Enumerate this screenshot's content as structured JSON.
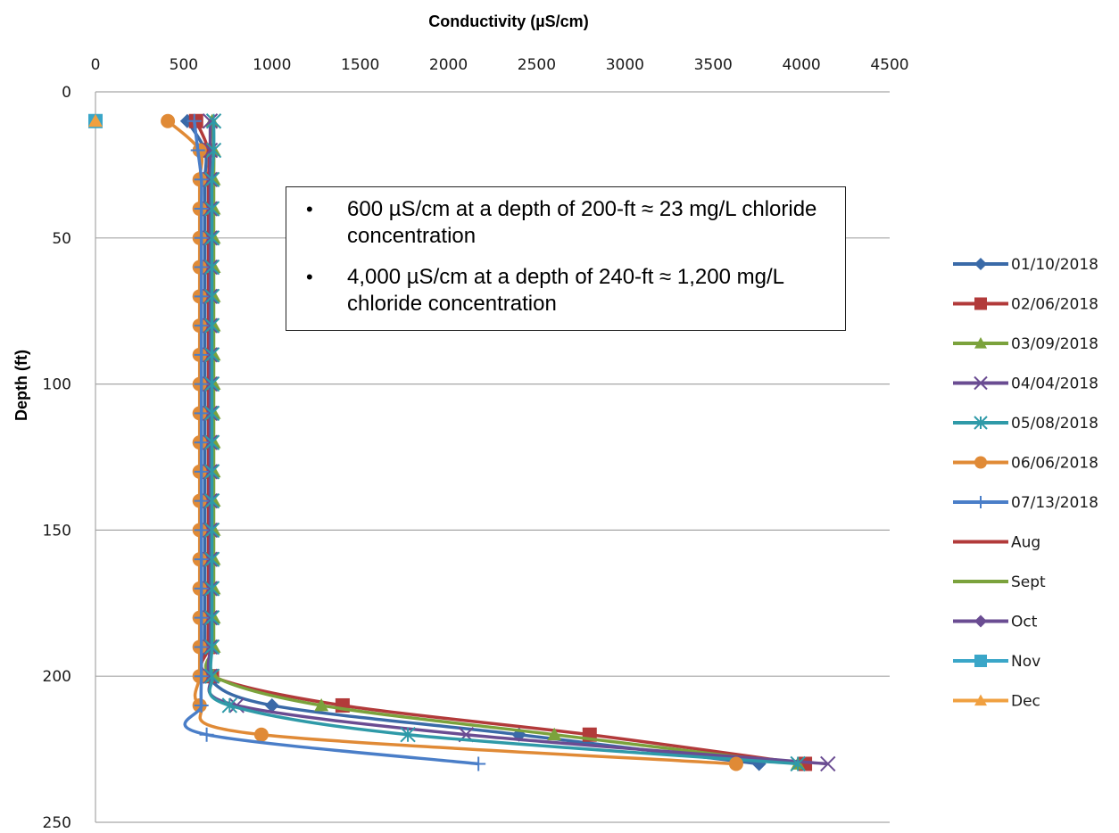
{
  "chart_data": {
    "type": "line",
    "title": "",
    "xlabel": "Conductivity (µS/cm)",
    "ylabel": "Depth (ft)",
    "xlim": [
      0,
      4500
    ],
    "ylim": [
      0,
      250
    ],
    "y_inverted": true,
    "x_axis_position": "top",
    "grid": "horizontal",
    "legend_position": "right",
    "x_ticks": [
      "0",
      "500",
      "1000",
      "1500",
      "2000",
      "2500",
      "3000",
      "3500",
      "4000",
      "4500"
    ],
    "y_ticks": [
      "0",
      "50",
      "100",
      "150",
      "200",
      "250"
    ],
    "series": [
      {
        "name": "01/10/2018",
        "color": "#3a6aa8",
        "marker": "diamond",
        "points": [
          [
            520,
            10
          ],
          [
            620,
            20
          ],
          [
            620,
            30
          ],
          [
            620,
            40
          ],
          [
            620,
            50
          ],
          [
            620,
            60
          ],
          [
            620,
            70
          ],
          [
            620,
            80
          ],
          [
            620,
            90
          ],
          [
            620,
            100
          ],
          [
            620,
            110
          ],
          [
            620,
            120
          ],
          [
            620,
            130
          ],
          [
            620,
            140
          ],
          [
            620,
            150
          ],
          [
            620,
            160
          ],
          [
            620,
            170
          ],
          [
            620,
            180
          ],
          [
            620,
            190
          ],
          [
            630,
            200
          ],
          [
            1000,
            210
          ],
          [
            2400,
            220
          ],
          [
            3760,
            230
          ]
        ]
      },
      {
        "name": "02/06/2018",
        "color": "#b23a3a",
        "marker": "square",
        "points": [
          [
            570,
            10
          ],
          [
            640,
            20
          ],
          [
            640,
            30
          ],
          [
            640,
            40
          ],
          [
            640,
            50
          ],
          [
            640,
            60
          ],
          [
            640,
            70
          ],
          [
            640,
            80
          ],
          [
            640,
            90
          ],
          [
            640,
            100
          ],
          [
            640,
            110
          ],
          [
            640,
            120
          ],
          [
            640,
            130
          ],
          [
            640,
            140
          ],
          [
            640,
            150
          ],
          [
            640,
            160
          ],
          [
            640,
            170
          ],
          [
            640,
            180
          ],
          [
            640,
            190
          ],
          [
            660,
            200
          ],
          [
            1400,
            210
          ],
          [
            2800,
            220
          ],
          [
            4020,
            230
          ]
        ]
      },
      {
        "name": "03/09/2018",
        "color": "#7ba23c",
        "marker": "triangle",
        "points": [
          [
            660,
            10
          ],
          [
            670,
            20
          ],
          [
            670,
            30
          ],
          [
            670,
            40
          ],
          [
            670,
            50
          ],
          [
            670,
            60
          ],
          [
            670,
            70
          ],
          [
            670,
            80
          ],
          [
            670,
            90
          ],
          [
            670,
            100
          ],
          [
            670,
            110
          ],
          [
            670,
            120
          ],
          [
            670,
            130
          ],
          [
            670,
            140
          ],
          [
            670,
            150
          ],
          [
            670,
            160
          ],
          [
            670,
            170
          ],
          [
            670,
            180
          ],
          [
            670,
            190
          ],
          [
            670,
            200
          ],
          [
            1280,
            210
          ],
          [
            2600,
            220
          ],
          [
            3980,
            230
          ]
        ]
      },
      {
        "name": "04/04/2018",
        "color": "#6a4c92",
        "marker": "x",
        "points": [
          [
            650,
            10
          ],
          [
            650,
            20
          ],
          [
            650,
            30
          ],
          [
            650,
            40
          ],
          [
            650,
            50
          ],
          [
            650,
            60
          ],
          [
            650,
            70
          ],
          [
            650,
            80
          ],
          [
            650,
            90
          ],
          [
            650,
            100
          ],
          [
            650,
            110
          ],
          [
            650,
            120
          ],
          [
            650,
            130
          ],
          [
            650,
            140
          ],
          [
            650,
            150
          ],
          [
            650,
            160
          ],
          [
            650,
            170
          ],
          [
            650,
            180
          ],
          [
            650,
            190
          ],
          [
            650,
            200
          ],
          [
            800,
            210
          ],
          [
            2100,
            220
          ],
          [
            4150,
            230
          ]
        ]
      },
      {
        "name": "05/08/2018",
        "color": "#2f9aa8",
        "marker": "asterisk",
        "points": [
          [
            670,
            10
          ],
          [
            670,
            20
          ],
          [
            660,
            30
          ],
          [
            660,
            40
          ],
          [
            660,
            50
          ],
          [
            660,
            60
          ],
          [
            660,
            70
          ],
          [
            660,
            80
          ],
          [
            660,
            90
          ],
          [
            660,
            100
          ],
          [
            660,
            110
          ],
          [
            660,
            120
          ],
          [
            660,
            130
          ],
          [
            660,
            140
          ],
          [
            660,
            150
          ],
          [
            660,
            160
          ],
          [
            660,
            170
          ],
          [
            660,
            180
          ],
          [
            660,
            190
          ],
          [
            660,
            200
          ],
          [
            760,
            210
          ],
          [
            1770,
            220
          ],
          [
            3980,
            230
          ]
        ]
      },
      {
        "name": "06/06/2018",
        "color": "#e08a36",
        "marker": "circle",
        "points": [
          [
            410,
            10
          ],
          [
            590,
            20
          ],
          [
            590,
            30
          ],
          [
            590,
            40
          ],
          [
            590,
            50
          ],
          [
            590,
            60
          ],
          [
            590,
            70
          ],
          [
            590,
            80
          ],
          [
            590,
            90
          ],
          [
            590,
            100
          ],
          [
            590,
            110
          ],
          [
            590,
            120
          ],
          [
            590,
            130
          ],
          [
            590,
            140
          ],
          [
            590,
            150
          ],
          [
            590,
            160
          ],
          [
            590,
            170
          ],
          [
            590,
            180
          ],
          [
            590,
            190
          ],
          [
            590,
            200
          ],
          [
            590,
            210
          ],
          [
            940,
            220
          ],
          [
            3630,
            230
          ]
        ]
      },
      {
        "name": "07/13/2018",
        "color": "#4a7ec8",
        "marker": "plus",
        "points": [
          [
            560,
            10
          ],
          [
            580,
            20
          ],
          [
            600,
            30
          ],
          [
            600,
            40
          ],
          [
            600,
            50
          ],
          [
            600,
            60
          ],
          [
            600,
            70
          ],
          [
            600,
            80
          ],
          [
            600,
            90
          ],
          [
            600,
            100
          ],
          [
            600,
            110
          ],
          [
            600,
            120
          ],
          [
            600,
            130
          ],
          [
            600,
            140
          ],
          [
            600,
            150
          ],
          [
            600,
            160
          ],
          [
            600,
            170
          ],
          [
            600,
            180
          ],
          [
            600,
            190
          ],
          [
            600,
            200
          ],
          [
            600,
            210
          ],
          [
            630,
            220
          ],
          [
            2170,
            230
          ]
        ]
      },
      {
        "name": "Aug",
        "color": "#b23a3a",
        "marker": "none",
        "points": []
      },
      {
        "name": "Sept",
        "color": "#7ba23c",
        "marker": "none",
        "points": []
      },
      {
        "name": "Oct",
        "color": "#6a4c92",
        "marker": "diamond",
        "points": []
      },
      {
        "name": "Nov",
        "color": "#3aa6c8",
        "marker": "square",
        "points": [
          [
            0,
            10
          ]
        ]
      },
      {
        "name": "Dec",
        "color": "#f0a040",
        "marker": "triangle",
        "points": [
          [
            0,
            10
          ]
        ]
      }
    ],
    "annotations": [
      "600 µS/cm at a depth of 200-ft ≈ 23 mg/L chloride concentration",
      "4,000 µS/cm at a depth of 240-ft ≈ 1,200 mg/L chloride concentration"
    ]
  }
}
